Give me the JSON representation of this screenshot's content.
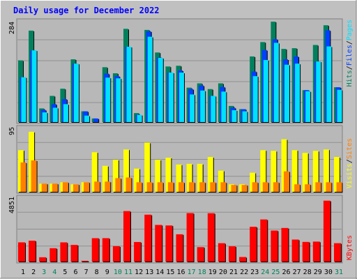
{
  "chart_data": {
    "type": "bar",
    "title": "Daily usage for December 2022",
    "x_labels": [
      "1",
      "2",
      "3",
      "4",
      "5",
      "6",
      "7",
      "8",
      "9",
      "10",
      "11",
      "12",
      "13",
      "14",
      "15",
      "16",
      "17",
      "18",
      "19",
      "20",
      "21",
      "22",
      "23",
      "24",
      "25",
      "26",
      "27",
      "28",
      "29",
      "30",
      "31"
    ],
    "weekend_days": [
      3,
      4,
      10,
      11,
      17,
      18,
      24,
      25,
      31
    ],
    "colors": {
      "hits": "#00805c",
      "files": "#0040ff",
      "pages": "#00e0ff",
      "visits": "#ffff00",
      "sites": "#ff8000",
      "kbytes": "#ff0000",
      "title": "#0000ff",
      "background": "#c0c0c0",
      "weekday_label": "#000000",
      "weekend_label": "#00805c"
    },
    "top_panel": {
      "max_label": "284",
      "ylim": [
        0,
        284
      ],
      "legend": [
        "Hits",
        "/",
        "Files",
        "/",
        "Pages"
      ],
      "series": [
        {
          "name": "Hits",
          "values": [
            172,
            255,
            38,
            73,
            93,
            175,
            30,
            10,
            153,
            136,
            260,
            25,
            257,
            194,
            155,
            157,
            96,
            108,
            92,
            108,
            45,
            36,
            183,
            223,
            280,
            204,
            206,
            89,
            215,
            270,
            97
          ]
        },
        {
          "name": "Files",
          "values": [
            125,
            200,
            34,
            50,
            64,
            163,
            30,
            10,
            135,
            128,
            210,
            20,
            253,
            180,
            138,
            144,
            92,
            102,
            73,
            98,
            40,
            36,
            141,
            201,
            231,
            175,
            183,
            89,
            169,
            256,
            97
          ]
        },
        {
          "name": "Pages",
          "values": [
            125,
            200,
            27,
            40,
            50,
            163,
            18,
            0,
            124,
            122,
            210,
            20,
            238,
            179,
            138,
            138,
            77,
            88,
            73,
            85,
            33,
            30,
            128,
            173,
            221,
            160,
            163,
            86,
            169,
            211,
            90
          ]
        }
      ]
    },
    "middle_panel": {
      "max_label": "95",
      "ylim": [
        0,
        95
      ],
      "legend": [
        "Visits",
        "/",
        "Sites"
      ],
      "series": [
        {
          "name": "Visits",
          "values": [
            61,
            88,
            12,
            12,
            14,
            11,
            14,
            58,
            38,
            47,
            62,
            34,
            72,
            47,
            50,
            40,
            41,
            41,
            51,
            31,
            11,
            11,
            28,
            61,
            60,
            77,
            61,
            57,
            60,
            62,
            51
          ]
        },
        {
          "name": "Sites",
          "values": [
            43,
            46,
            12,
            12,
            14,
            11,
            14,
            15,
            15,
            20,
            21,
            14,
            14,
            14,
            14,
            14,
            14,
            14,
            14,
            14,
            10,
            10,
            14,
            14,
            14,
            30,
            11,
            11,
            14,
            14,
            14
          ]
        }
      ]
    },
    "bottom_panel": {
      "max_label": "4851",
      "ylim": [
        0,
        4851
      ],
      "legend": [
        "KBytes"
      ],
      "series": [
        {
          "name": "KBytes",
          "values": [
            1437,
            1562,
            323,
            1000,
            1436,
            1245,
            60,
            1749,
            1750,
            1150,
            3775,
            1463,
            3507,
            2740,
            2700,
            2040,
            3625,
            1080,
            3616,
            1375,
            1142,
            340,
            2600,
            3150,
            2320,
            2512,
            1645,
            1470,
            1492,
            4554,
            1375
          ]
        }
      ]
    }
  }
}
